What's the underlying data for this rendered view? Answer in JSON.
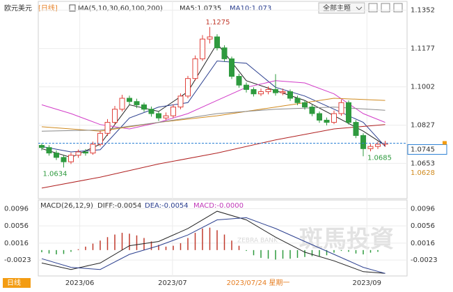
{
  "chart_data": [
    {
      "type": "candlestick",
      "title": "欧元美元",
      "period_label": "[日线]",
      "indicator": "MA(5,10,30,60,100,200)",
      "readouts": [
        "MA5:1.0735",
        "MA10:1.073"
      ],
      "ylim": [
        1.0492,
        1.1392
      ],
      "yticks": [
        1.1352,
        1.1177,
        1.1002,
        1.0827,
        1.0653
      ],
      "xticks": [
        {
          "value": 5.2,
          "label": "2023/06"
        },
        {
          "value": 17.9,
          "label": "2023/07"
        },
        {
          "value": 44.5,
          "label": "2023/09"
        }
      ],
      "up_color": "#e0403a",
      "down_color": "#2e9a3e",
      "grid": true,
      "open": [
        1.0735,
        1.0725,
        1.07,
        1.068,
        1.066,
        1.069,
        1.0705,
        1.07,
        1.074,
        1.079,
        1.084,
        1.09,
        1.095,
        1.0935,
        1.092,
        1.09,
        1.088,
        1.086,
        1.087,
        1.091,
        1.096,
        1.104,
        1.113,
        1.122,
        1.123,
        1.118,
        1.113,
        1.105,
        1.101,
        1.099,
        1.097,
        1.098,
        1.099,
        1.0975,
        1.098,
        1.095,
        1.093,
        1.091,
        1.088,
        1.085,
        1.084,
        1.088,
        1.093,
        1.084,
        1.078,
        1.072,
        1.073,
        1.074
      ],
      "high": [
        1.0745,
        1.0736,
        1.0712,
        1.069,
        1.0702,
        1.0716,
        1.0718,
        1.0752,
        1.0802,
        1.0855,
        1.0915,
        1.0966,
        1.0962,
        1.0948,
        1.093,
        1.0912,
        1.089,
        1.0885,
        1.0922,
        1.0972,
        1.1052,
        1.1145,
        1.1238,
        1.1275,
        1.1242,
        1.1192,
        1.114,
        1.1062,
        1.1022,
        1.1,
        1.0994,
        1.1004,
        1.106,
        1.0994,
        1.099,
        1.0962,
        1.0942,
        1.092,
        1.089,
        1.0862,
        1.0894,
        1.0944,
        1.094,
        1.085,
        1.079,
        1.0742,
        1.0752,
        1.0756
      ],
      "low": [
        1.0712,
        1.0688,
        1.0668,
        1.0634,
        1.065,
        1.0678,
        1.0688,
        1.0692,
        1.073,
        1.0778,
        1.083,
        1.089,
        1.092,
        1.0905,
        1.0888,
        1.0866,
        1.0846,
        1.085,
        1.086,
        1.09,
        1.095,
        1.103,
        1.112,
        1.12,
        1.1168,
        1.1118,
        1.1038,
        1.0998,
        1.0976,
        1.0958,
        1.096,
        1.0968,
        1.0962,
        1.0964,
        1.0938,
        1.0918,
        1.0898,
        1.0868,
        1.0838,
        1.0826,
        1.0832,
        1.087,
        1.083,
        1.0768,
        1.0685,
        1.0708,
        1.0718,
        1.0728
      ],
      "close": [
        1.0725,
        1.07,
        1.068,
        1.066,
        1.069,
        1.0705,
        1.07,
        1.074,
        1.079,
        1.084,
        1.09,
        1.095,
        1.0935,
        1.092,
        1.09,
        1.088,
        1.086,
        1.087,
        1.091,
        1.096,
        1.104,
        1.113,
        1.122,
        1.123,
        1.118,
        1.113,
        1.105,
        1.101,
        1.099,
        1.097,
        1.098,
        1.099,
        1.0975,
        1.098,
        1.095,
        1.093,
        1.091,
        1.088,
        1.085,
        1.084,
        1.088,
        1.093,
        1.084,
        1.078,
        1.072,
        1.073,
        1.074,
        1.0745
      ],
      "series": [
        {
          "color": "#222222",
          "x": [
            0,
            4,
            8,
            12,
            16,
            20,
            24,
            28,
            32,
            36,
            40,
            44,
            47
          ],
          "values": [
            1.072,
            1.068,
            1.074,
            1.092,
            1.089,
            1.098,
            1.12,
            1.103,
            1.0985,
            1.094,
            1.087,
            1.08,
            1.0735
          ]
        },
        {
          "color": "#2b3f8f",
          "x": [
            0,
            4,
            8,
            12,
            16,
            20,
            24,
            28,
            32,
            36,
            40,
            44,
            47
          ],
          "values": [
            1.073,
            1.0705,
            1.0715,
            1.086,
            1.091,
            1.093,
            1.112,
            1.111,
            1.1,
            1.096,
            1.09,
            1.084,
            1.073
          ]
        },
        {
          "color": "#d23cc8",
          "x": [
            0,
            4,
            8,
            12,
            16,
            20,
            24,
            28,
            32,
            36,
            40,
            44,
            47
          ],
          "values": [
            1.092,
            1.088,
            1.083,
            1.081,
            1.084,
            1.088,
            1.094,
            1.1,
            1.103,
            1.102,
            1.097,
            1.088,
            1.084
          ]
        },
        {
          "color": "#d08a1e",
          "x": [
            0,
            8,
            16,
            24,
            32,
            40,
            47
          ],
          "values": [
            1.082,
            1.08,
            1.084,
            1.087,
            1.091,
            1.095,
            1.094
          ]
        },
        {
          "color": "#8a8a8a",
          "x": [
            0,
            8,
            16,
            24,
            32,
            40,
            47
          ],
          "values": [
            1.08,
            1.0805,
            1.084,
            1.088,
            1.09,
            1.091,
            1.0895
          ]
        },
        {
          "color": "#b02020",
          "x": [
            0,
            8,
            16,
            24,
            32,
            40,
            47
          ],
          "values": [
            1.054,
            1.059,
            1.065,
            1.07,
            1.076,
            1.081,
            1.083
          ]
        }
      ],
      "high_label": 1.1275,
      "low_labels": [
        1.0634,
        1.0685
      ],
      "last_price": 1.0745,
      "marker_price": 1.0628
    },
    {
      "type": "macd",
      "title": "MACD(26,12,9)",
      "readouts": [
        "DIFF:-0.0054",
        "DEA:-0.0054",
        "MACD:-0.0000"
      ],
      "ylim": [
        -0.006,
        0.0116
      ],
      "yticks": [
        0.0096,
        0.0056,
        0.0016,
        -0.0023
      ],
      "up_color": "#c0392b",
      "down_color": "#2e9a3e",
      "histogram": [
        -0.0005,
        -0.0008,
        -0.001,
        -0.0009,
        -0.0004,
        0.0002,
        0.0008,
        0.0015,
        0.0022,
        0.003,
        0.0036,
        0.004,
        0.0038,
        0.0034,
        0.0028,
        0.002,
        0.0012,
        0.0008,
        0.001,
        0.0016,
        0.0028,
        0.004,
        0.005,
        0.0052,
        0.0046,
        0.0036,
        0.0022,
        0.001,
        -0.0002,
        -0.0012,
        -0.0018,
        -0.002,
        -0.0022,
        -0.002,
        -0.002,
        -0.0018,
        -0.0016,
        -0.0014,
        -0.0014,
        -0.0012,
        -0.0006,
        -0.0002,
        -0.0004,
        -0.0008,
        -0.001,
        -0.0006,
        -0.0004,
        0.0
      ],
      "series": [
        {
          "color": "#222222",
          "x": [
            0,
            4,
            8,
            12,
            16,
            20,
            24,
            28,
            32,
            36,
            40,
            44,
            47
          ],
          "values": [
            -0.003,
            -0.0045,
            -0.003,
            0.001,
            0.002,
            0.005,
            0.009,
            0.007,
            0.003,
            -0.0005,
            -0.0025,
            -0.005,
            -0.0054
          ]
        },
        {
          "color": "#2b3f8f",
          "x": [
            0,
            4,
            8,
            12,
            16,
            20,
            24,
            28,
            32,
            36,
            40,
            44,
            47
          ],
          "values": [
            -0.002,
            -0.004,
            -0.0045,
            -0.001,
            0.001,
            0.0035,
            0.007,
            0.0075,
            0.005,
            0.002,
            -0.001,
            -0.004,
            -0.0054
          ]
        }
      ]
    }
  ],
  "toolbar": {
    "theme_button": "全部主题"
  },
  "watermark": {
    "brand": "斑馬投資",
    "brand_en": "ZEBRA BANK"
  },
  "footer": {
    "period": "日线",
    "cursor_date": "2023/07/24 星期一"
  }
}
